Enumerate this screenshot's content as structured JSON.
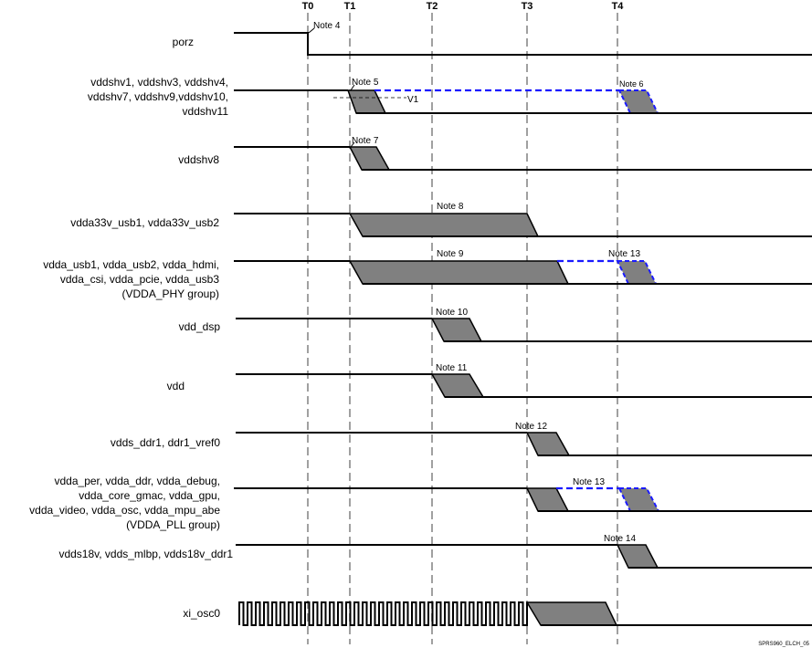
{
  "time_markers": [
    "T0",
    "T1",
    "T2",
    "T3",
    "T4"
  ],
  "signals": {
    "porz": [
      "porz"
    ],
    "vddshv": [
      "vddshv1, vddshv3, vddshv4,",
      "vddshv7, vddshv9,vddshv10,",
      "vddshv11"
    ],
    "vddshv8": [
      "vddshv8"
    ],
    "vdda33v": [
      "vdda33v_usb1, vdda33v_usb2"
    ],
    "vdda_phy": [
      "vdda_usb1, vdda_usb2, vdda_hdmi,",
      "vdda_csi, vdda_pcie, vdda_usb3",
      "(VDDA_PHY group)"
    ],
    "vdd_dsp": [
      "vdd_dsp"
    ],
    "vdd": [
      "vdd"
    ],
    "vdds_ddr1": [
      "vdds_ddr1, ddr1_vref0"
    ],
    "vdda_pll": [
      "vdda_per, vdda_ddr, vdda_debug,",
      "vdda_core_gmac, vdda_gpu,",
      "vdda_video, vdda_osc, vdda_mpu_abe",
      "(VDDA_PLL group)"
    ],
    "vdds18v": [
      "vdds18v, vdds_mlbp, vdds18v_ddr1"
    ],
    "xi_osc0": [
      "xi_osc0"
    ]
  },
  "notes": {
    "n4": "Note 4",
    "n5": "Note 5",
    "n6": "Note 6",
    "n7": "Note 7",
    "n8": "Note 8",
    "n9": "Note 9",
    "n10": "Note 10",
    "n11": "Note 11",
    "n12": "Note 12",
    "n13a": "Note 13",
    "n13b": "Note 13",
    "n14": "Note 14"
  },
  "v1_label": "V1",
  "footer": "SPRS960_ELCH_05"
}
